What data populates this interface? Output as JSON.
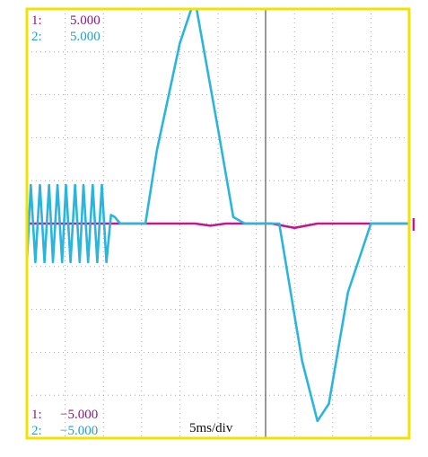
{
  "readouts": {
    "top": [
      {
        "ch": "1:",
        "value": "5.000",
        "color": "#8B1A7A"
      },
      {
        "ch": "2:",
        "value": "5.000",
        "color": "#1E9FC9"
      }
    ],
    "bottom": [
      {
        "ch": "1:",
        "value": "−5.000",
        "color": "#8B1A7A"
      },
      {
        "ch": "2:",
        "value": "−5.000",
        "color": "#1E9FC9"
      }
    ]
  },
  "timebase": "5ms/div",
  "colors": {
    "frame": "#F2E200",
    "grid": "#9a9a9a",
    "center_line": "#555555",
    "ch1": "#C2188E",
    "ch2": "#2BB5DD"
  },
  "chart_data": {
    "type": "line",
    "xlabel": "5ms/div",
    "x_unit": "ms",
    "xlim": [
      0,
      50
    ],
    "ylim": [
      -5,
      5
    ],
    "grid": true,
    "series": [
      {
        "channel": "1",
        "color": "#C2188E",
        "x": [
          0,
          15,
          17,
          22,
          24,
          26,
          28,
          30,
          32,
          35,
          38,
          42,
          45,
          50
        ],
        "y": [
          0,
          0,
          0,
          0,
          -0.05,
          0,
          0,
          0,
          0,
          -0.1,
          0,
          0,
          0,
          0
        ]
      },
      {
        "channel": "2",
        "color": "#2BB5DD",
        "x": [
          0,
          0.5,
          1.1,
          1.7,
          2.3,
          2.9,
          3.4,
          4.0,
          4.6,
          5.1,
          5.7,
          6.3,
          6.9,
          7.4,
          8.0,
          8.6,
          9.2,
          9.8,
          10.4,
          11.0,
          11.5,
          12.2,
          13.0,
          15.5,
          17.0,
          20.0,
          21.5,
          22.2,
          25.0,
          27.0,
          28.5,
          30.0,
          30.5,
          33.0,
          36.0,
          38.0,
          39.5,
          42.0,
          45.0,
          46.5,
          47.0,
          50.0
        ],
        "y": [
          -0.9,
          0.9,
          -0.9,
          0.9,
          -0.9,
          0.9,
          -0.9,
          0.9,
          -0.9,
          0.9,
          -0.9,
          0.9,
          -0.9,
          0.9,
          -0.9,
          0.9,
          -0.9,
          0.9,
          -0.9,
          0.2,
          0.15,
          0.0,
          0.0,
          0.0,
          1.7,
          4.2,
          5.0,
          5.0,
          2.2,
          0.15,
          0.0,
          0.0,
          0.0,
          0.0,
          -3.2,
          -4.6,
          -4.2,
          -1.6,
          0.0,
          0.0,
          0.0,
          0.0
        ]
      }
    ]
  }
}
